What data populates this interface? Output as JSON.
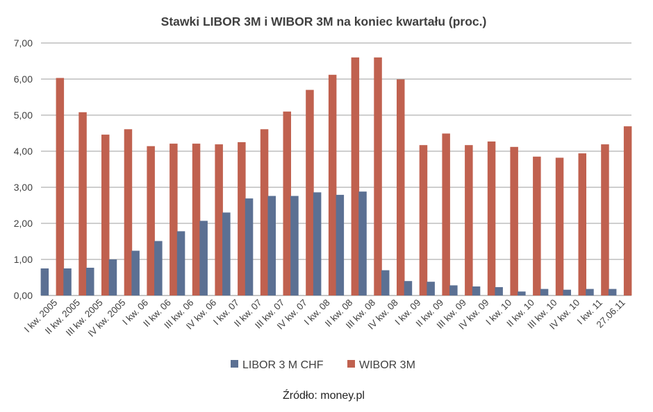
{
  "chart_data": {
    "type": "bar",
    "title": "Stawki LIBOR 3M i WIBOR 3M na koniec kwartału (proc.)",
    "xlabel": "",
    "ylabel": "",
    "ylim": [
      0,
      7
    ],
    "yticks": [
      "0,00",
      "1,00",
      "2,00",
      "3,00",
      "4,00",
      "5,00",
      "6,00",
      "7,00"
    ],
    "grid": true,
    "legend_position": "bottom",
    "categories": [
      "I kw. 2005",
      "II kw. 2005",
      "III kw. 2005",
      "IV kw. 2005",
      "I kw. 06",
      "II kw. 06",
      "III kw. 06",
      "IV kw. 06",
      "I kw. 07",
      "II kw. 07",
      "III kw. 07",
      "IV kw. 07",
      "I kw. 08",
      "II kw. 08",
      "III kw. 08",
      "IV kw. 08",
      "I kw. 09",
      "II kw. 09",
      "III kw. 09",
      "IV kw. 09",
      "I kw. 10",
      "II kw. 10",
      "III kw. 10",
      "IV kw. 10",
      "I kw. 11",
      "27.06.11"
    ],
    "series": [
      {
        "name": "LIBOR 3 M CHF",
        "color": "#5b7093",
        "values": [
          0.75,
          0.75,
          0.77,
          1.0,
          1.24,
          1.51,
          1.78,
          2.07,
          2.3,
          2.69,
          2.76,
          2.76,
          2.86,
          2.79,
          2.88,
          0.7,
          0.4,
          0.38,
          0.28,
          0.25,
          0.23,
          0.11,
          0.18,
          0.16,
          0.18,
          0.18
        ]
      },
      {
        "name": "WIBOR 3M",
        "color": "#c0614f",
        "values": [
          6.03,
          5.08,
          4.46,
          4.61,
          4.14,
          4.21,
          4.21,
          4.19,
          4.25,
          4.61,
          5.1,
          5.7,
          6.12,
          6.6,
          6.6,
          5.99,
          4.17,
          4.49,
          4.17,
          4.27,
          4.12,
          3.85,
          3.82,
          3.94,
          4.19,
          4.69
        ]
      }
    ],
    "source": "Źródło: money.pl"
  }
}
